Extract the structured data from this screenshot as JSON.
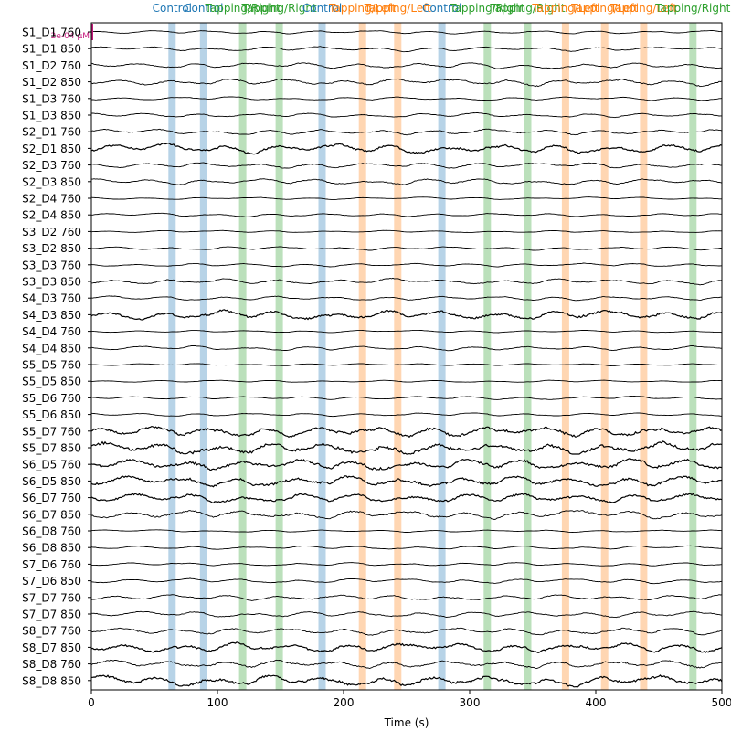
{
  "chart_data": {
    "type": "line",
    "xlabel": "Time (s)",
    "xlim": [
      0,
      500
    ],
    "xticks": [
      0,
      100,
      200,
      300,
      400,
      500
    ],
    "scale_bar_label": "2e-04 µM",
    "colors": {
      "Control": "#1f77b4",
      "Tapping/Left": "#ff7f0e",
      "Tapping/Right": "#2ca02c",
      "trace": "#000000",
      "scale_bar": "#c51b7d"
    },
    "channels": [
      "S1_D1 760",
      "S1_D1 850",
      "S1_D2 760",
      "S1_D2 850",
      "S1_D3 760",
      "S1_D3 850",
      "S2_D1 760",
      "S2_D1 850",
      "S2_D3 760",
      "S2_D3 850",
      "S2_D4 760",
      "S2_D4 850",
      "S3_D2 760",
      "S3_D2 850",
      "S3_D3 760",
      "S3_D3 850",
      "S4_D3 760",
      "S4_D3 850",
      "S4_D4 760",
      "S4_D4 850",
      "S5_D5 760",
      "S5_D5 850",
      "S5_D6 760",
      "S5_D6 850",
      "S5_D7 760",
      "S5_D7 850",
      "S6_D5 760",
      "S6_D5 850",
      "S6_D7 760",
      "S6_D7 850",
      "S6_D8 760",
      "S6_D8 850",
      "S7_D6 760",
      "S7_D6 850",
      "S7_D7 760",
      "S7_D7 850",
      "S8_D7 760",
      "S8_D7 850",
      "S8_D8 760",
      "S8_D8 850"
    ],
    "amplitude": [
      0.3,
      0.4,
      0.5,
      0.6,
      0.3,
      0.4,
      0.5,
      0.8,
      0.5,
      0.5,
      0.2,
      0.3,
      0.2,
      0.3,
      0.3,
      0.5,
      0.4,
      0.8,
      0.2,
      0.4,
      0.2,
      0.2,
      0.3,
      0.3,
      0.9,
      1.0,
      0.9,
      0.9,
      0.8,
      0.7,
      0.2,
      0.3,
      0.3,
      0.4,
      0.5,
      0.5,
      0.6,
      0.8,
      0.7,
      0.9
    ],
    "events": [
      {
        "t": 64,
        "label": "Control",
        "category": "Control"
      },
      {
        "t": 89,
        "label": "Control",
        "category": "Control"
      },
      {
        "t": 120,
        "label": "Tapping/Right",
        "category": "Tapping/Right"
      },
      {
        "t": 149,
        "label": "Tapping/Right",
        "category": "Tapping/Right"
      },
      {
        "t": 183,
        "label": "Control",
        "category": "Control"
      },
      {
        "t": 215,
        "label": "Tapping/Left",
        "category": "Tapping/Left"
      },
      {
        "t": 243,
        "label": "Tapping/Left",
        "category": "Tapping/Left"
      },
      {
        "t": 278,
        "label": "Control",
        "category": "Control"
      },
      {
        "t": 314,
        "label": "Tapping/Right",
        "category": "Tapping/Right"
      },
      {
        "t": 346,
        "label": "Tapping/Right",
        "category": "Tapping/Right"
      },
      {
        "t": 376,
        "label": "Tapping/Left",
        "category": "Tapping/Left"
      },
      {
        "t": 407,
        "label": "Tapping/Left",
        "category": "Tapping/Left"
      },
      {
        "t": 438,
        "label": "Tapping/Left",
        "category": "Tapping/Left"
      },
      {
        "t": 477,
        "label": "Tapping/Right",
        "category": "Tapping/Right"
      }
    ]
  }
}
